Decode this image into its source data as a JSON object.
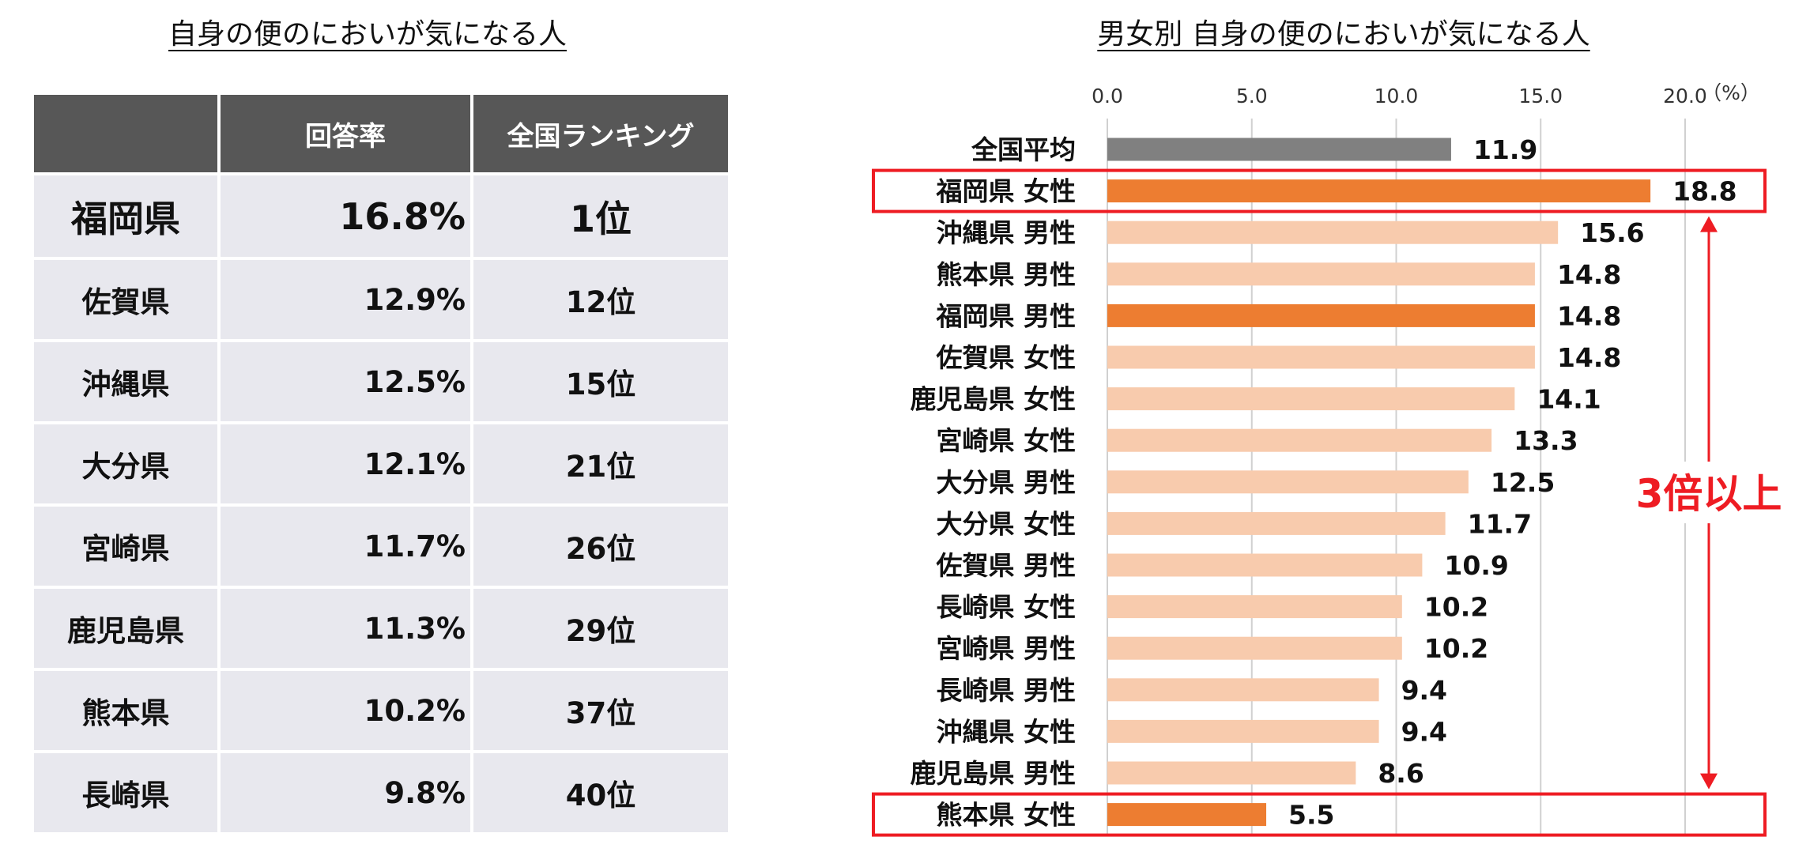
{
  "left_title": "自身の便のにおいが気になる人",
  "right_title": "男女別 自身の便のにおいが気になる人",
  "table": {
    "headers": [
      "",
      "回答率",
      "全国ランキング"
    ],
    "rows": [
      {
        "pref": "福岡県",
        "rate": "16.8%",
        "rank": "1位"
      },
      {
        "pref": "佐賀県",
        "rate": "12.9%",
        "rank": "12位"
      },
      {
        "pref": "沖縄県",
        "rate": "12.5%",
        "rank": "15位"
      },
      {
        "pref": "大分県",
        "rate": "12.1%",
        "rank": "21位"
      },
      {
        "pref": "宮崎県",
        "rate": "11.7%",
        "rank": "26位"
      },
      {
        "pref": "鹿児島県",
        "rate": "11.3%",
        "rank": "29位"
      },
      {
        "pref": "熊本県",
        "rate": "10.2%",
        "rank": "37位"
      },
      {
        "pref": "長崎県",
        "rate": "9.8%",
        "rank": "40位"
      }
    ]
  },
  "chart_data": {
    "type": "bar",
    "orientation": "horizontal",
    "title": "男女別 自身の便のにおいが気になる人",
    "unit": "（%）",
    "xlim": [
      0,
      20
    ],
    "ticks": [
      "0.0",
      "5.0",
      "10.0",
      "15.0",
      "20.0"
    ],
    "tick_values": [
      0,
      5,
      10,
      15,
      20
    ],
    "grid": true,
    "categories": [
      "全国平均",
      "福岡県 女性",
      "沖縄県 男性",
      "熊本県 男性",
      "福岡県 男性",
      "佐賀県 女性",
      "鹿児島県 女性",
      "宮崎県 女性",
      "大分県 男性",
      "大分県 女性",
      "佐賀県 男性",
      "長崎県 女性",
      "宮崎県 男性",
      "長崎県 男性",
      "沖縄県 女性",
      "鹿児島県 男性",
      "熊本県 女性"
    ],
    "values": [
      11.9,
      18.8,
      15.6,
      14.8,
      14.8,
      14.8,
      14.1,
      13.3,
      12.5,
      11.7,
      10.9,
      10.2,
      10.2,
      9.4,
      9.4,
      8.6,
      5.5
    ],
    "value_labels": [
      "11.9",
      "18.8",
      "15.6",
      "14.8",
      "14.8",
      "14.8",
      "14.1",
      "13.3",
      "12.5",
      "11.7",
      "10.9",
      "10.2",
      "10.2",
      "9.4",
      "9.4",
      "8.6",
      "5.5"
    ],
    "bar_colors": [
      "#808080",
      "#ed7d31",
      "#f8cbad",
      "#f8cbad",
      "#ed7d31",
      "#f8cbad",
      "#f8cbad",
      "#f8cbad",
      "#f8cbad",
      "#f8cbad",
      "#f8cbad",
      "#f8cbad",
      "#f8cbad",
      "#f8cbad",
      "#f8cbad",
      "#f8cbad",
      "#ed7d31"
    ],
    "highlighted": [
      "福岡県 女性",
      "熊本県 女性"
    ],
    "annotation": "3倍以上",
    "annotation_color": "#ee1c23"
  }
}
